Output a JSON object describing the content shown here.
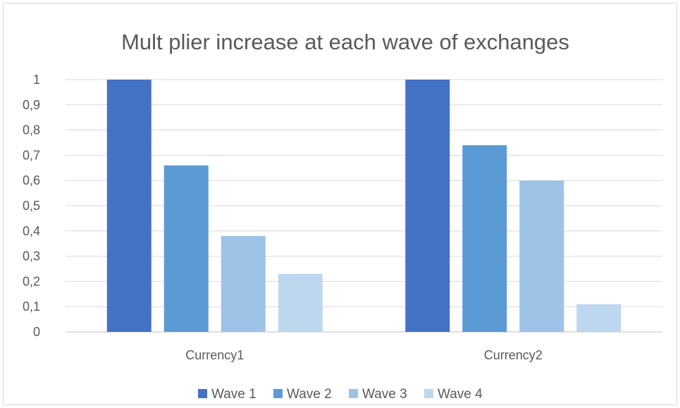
{
  "chart_data": {
    "type": "bar",
    "title": "Mult plier increase at each wave of exchanges",
    "categories": [
      "Currency1",
      "Currency2"
    ],
    "series": [
      {
        "name": "Wave 1",
        "values": [
          1.0,
          1.0
        ],
        "color": "#4472C4"
      },
      {
        "name": "Wave 2",
        "values": [
          0.66,
          0.74
        ],
        "color": "#5B9BD5"
      },
      {
        "name": "Wave 3",
        "values": [
          0.38,
          0.6
        ],
        "color": "#9DC3E6"
      },
      {
        "name": "Wave 4",
        "values": [
          0.23,
          0.11
        ],
        "color": "#BDD7EE"
      }
    ],
    "ylim": [
      0,
      1
    ],
    "yticks": [
      "0",
      "0,1",
      "0,2",
      "0,3",
      "0,4",
      "0,5",
      "0,6",
      "0,7",
      "0,8",
      "0,9",
      "1"
    ],
    "xlabel": "",
    "ylabel": "",
    "grid": true,
    "legend_position": "bottom"
  }
}
